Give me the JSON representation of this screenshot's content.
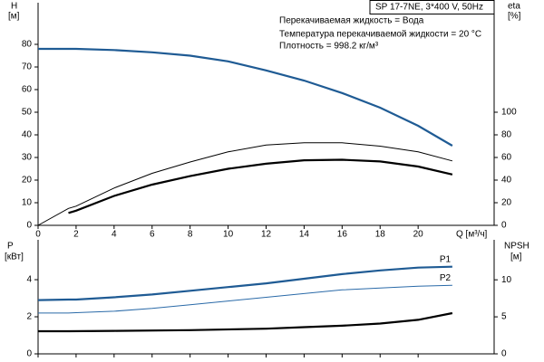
{
  "chart_data": [
    {
      "type": "line",
      "title": "SP 17-7NE, 3*400 V, 50Hz",
      "annotations": [
        "Перекачиваемая жидкость = Вода",
        "Температура перекачиваемой жидкости = 20 °C",
        "Плотность = 998.2 кг/м³"
      ],
      "x_label": "Q [м³/ч]",
      "y_label": "H",
      "y_unit": "[м]",
      "y2_label": "eta",
      "y2_unit": "[%]",
      "xlim": [
        0,
        24
      ],
      "xticks": [
        0,
        2,
        4,
        6,
        8,
        10,
        12,
        14,
        16,
        18,
        20
      ],
      "ylim": [
        0,
        98
      ],
      "yticks": [
        0,
        10,
        20,
        30,
        40,
        50,
        60,
        70,
        80
      ],
      "y2lim": [
        0,
        196
      ],
      "y2ticks": [
        0,
        20,
        40,
        60,
        80,
        100
      ],
      "series": [
        {
          "color": "#1f5b94",
          "line_width": 2.2,
          "x": [
            0,
            2,
            4,
            6,
            8,
            10,
            12,
            14,
            16,
            18,
            20,
            21.8
          ],
          "values": [
            78,
            78,
            77.5,
            76.5,
            75,
            72.5,
            68.5,
            64,
            58.5,
            52,
            44,
            35.2
          ]
        },
        {
          "color": "#000000",
          "line_width": 1,
          "axis": "y2",
          "x": [
            0,
            1.6,
            2,
            4,
            6,
            8,
            10,
            12,
            14,
            16,
            18,
            20,
            21.8
          ],
          "values": [
            0,
            15,
            17,
            33,
            46,
            56,
            65,
            71,
            73,
            73,
            70,
            65,
            57
          ]
        },
        {
          "color": "#000000",
          "line_width": 2.2,
          "axis": "y2",
          "x": [
            1.6,
            2,
            4,
            6,
            8,
            10,
            12,
            14,
            16,
            18,
            20,
            21.8
          ],
          "values": [
            11,
            13,
            26,
            36,
            43.5,
            50,
            54.5,
            57.5,
            58,
            56.5,
            52,
            45
          ]
        }
      ]
    },
    {
      "type": "line",
      "y_label": "P",
      "y_unit": "[кВт]",
      "y2_label": "NPSH",
      "y2_unit": "[м]",
      "ylim": [
        0,
        6.15
      ],
      "yticks": [
        0,
        2,
        4
      ],
      "y2lim": [
        0,
        15.4
      ],
      "y2ticks": [
        0,
        5,
        10
      ],
      "series": [
        {
          "name": "P1",
          "color": "#1f5b94",
          "line_width": 2.2,
          "x": [
            0,
            1.6,
            2,
            4,
            6,
            8,
            10,
            12,
            14,
            16,
            18,
            20,
            21.8
          ],
          "values": [
            2.9,
            2.93,
            2.93,
            3.05,
            3.2,
            3.4,
            3.6,
            3.8,
            4.05,
            4.3,
            4.5,
            4.65,
            4.7
          ]
        },
        {
          "name": "P2",
          "color": "#2a6aa8",
          "line_width": 1,
          "x": [
            0,
            1.6,
            2,
            4,
            6,
            8,
            10,
            12,
            14,
            16,
            18,
            20,
            21.8
          ],
          "values": [
            2.2,
            2.2,
            2.22,
            2.3,
            2.45,
            2.65,
            2.85,
            3.05,
            3.25,
            3.45,
            3.55,
            3.65,
            3.7
          ]
        },
        {
          "color": "#000000",
          "line_width": 2.2,
          "axis": "y2",
          "x": [
            0,
            1.6,
            4,
            8,
            12,
            14,
            16,
            18,
            20,
            21.8
          ],
          "values": [
            3.05,
            3.05,
            3.1,
            3.2,
            3.4,
            3.6,
            3.8,
            4.1,
            4.6,
            5.5
          ]
        }
      ]
    }
  ]
}
